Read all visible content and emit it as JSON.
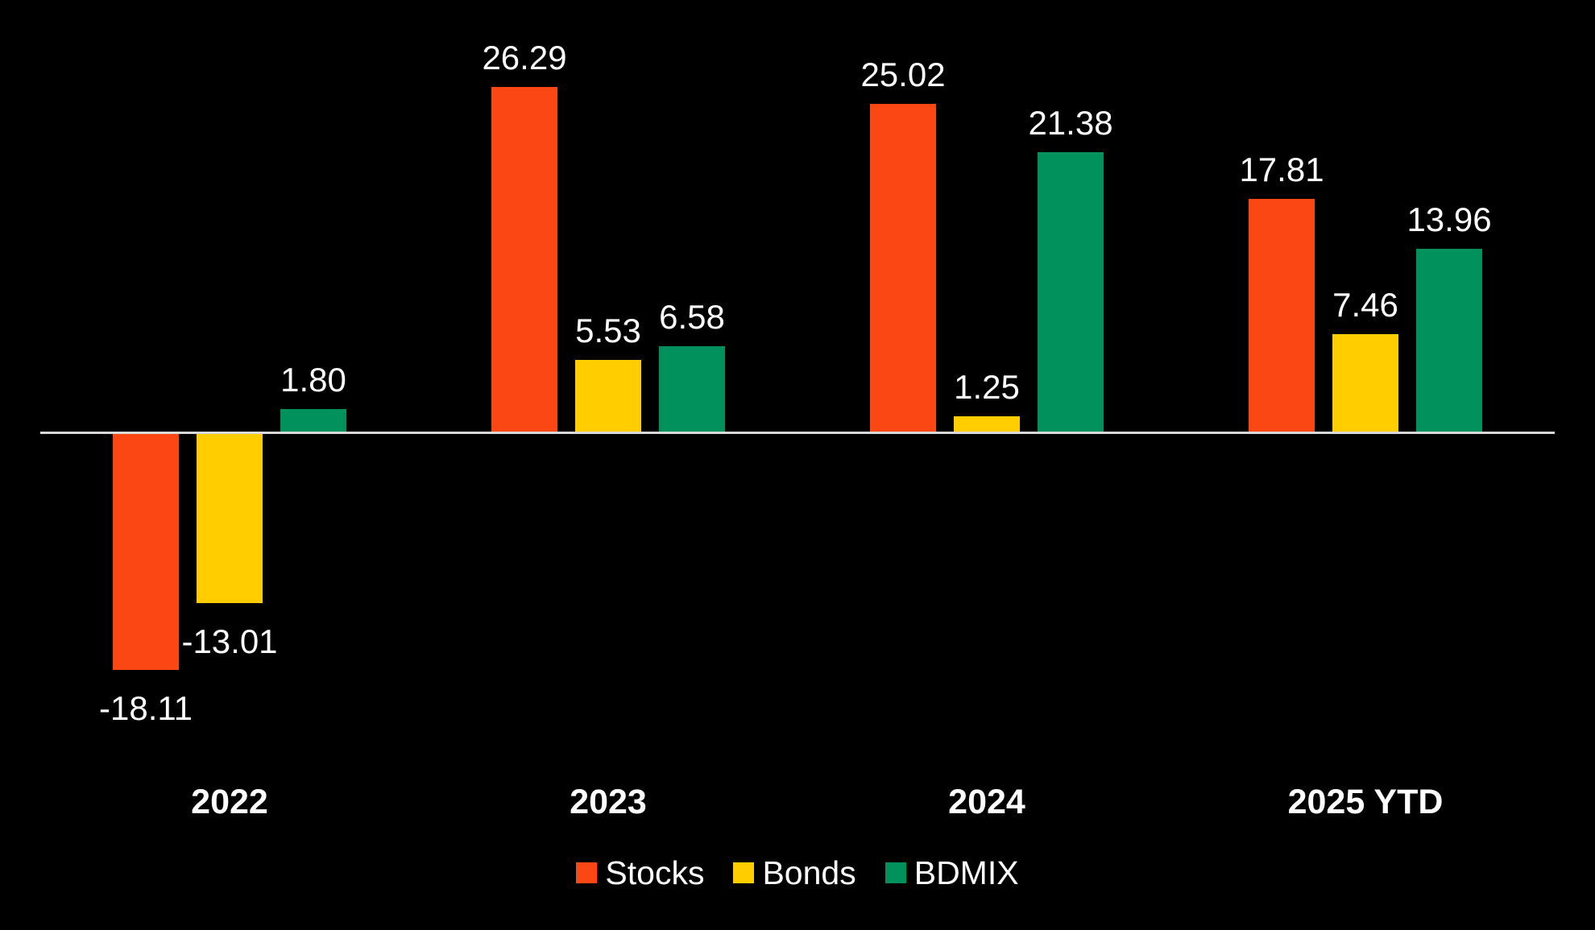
{
  "chart_data": {
    "type": "bar",
    "title": "",
    "xlabel": "",
    "ylabel": "",
    "background_color": "#000000",
    "text_color": "#FFFFFF",
    "zero_line_color": "#D9D9D9",
    "gridlines": false,
    "y_axis_shown": false,
    "value_labels_shown": true,
    "ylim": [
      -20,
      28
    ],
    "categories": [
      "2022",
      "2023",
      "2024",
      "2025 YTD"
    ],
    "series": [
      {
        "name": "Stocks",
        "color": "#FB4714",
        "values": [
          -18.11,
          26.29,
          25.02,
          17.81
        ],
        "display_labels": [
          "-18.11",
          "26.29",
          "25.02",
          "17.81"
        ]
      },
      {
        "name": "Bonds",
        "color": "#FFCD00",
        "values": [
          -13.01,
          5.53,
          1.25,
          7.46
        ],
        "display_labels": [
          "-13.01",
          "5.53",
          "1.25",
          "7.46"
        ]
      },
      {
        "name": "BDMIX",
        "color": "#00915C",
        "values": [
          1.8,
          6.58,
          21.38,
          13.96
        ],
        "display_labels": [
          "1.80",
          "6.58",
          "21.38",
          "13.96"
        ]
      }
    ],
    "legend": {
      "position": "bottom",
      "entries": [
        "Stocks",
        "Bonds",
        "BDMIX"
      ]
    }
  }
}
